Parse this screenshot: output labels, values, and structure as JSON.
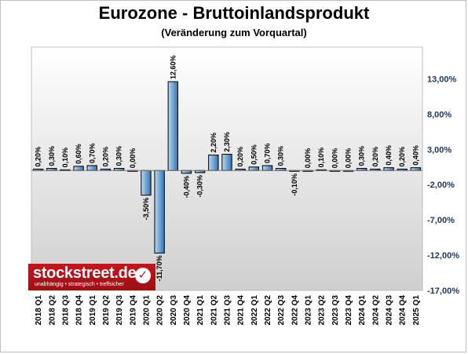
{
  "chart_data": {
    "type": "bar",
    "title": "Eurozone - Bruttoinlandsprodukt",
    "subtitle": "(Veränderung zum Vorquartal)",
    "categories": [
      "2018 Q1",
      "2018 Q2",
      "2018 Q3",
      "2018 Q4",
      "2019 Q1",
      "2019 Q2",
      "2019 Q3",
      "2019 Q4",
      "2020 Q1",
      "2020 Q2",
      "2020 Q3",
      "2020 Q4",
      "2021 Q1",
      "2021 Q2",
      "2021 Q3",
      "2021 Q4",
      "2022 Q1",
      "2022 Q2",
      "2022 Q3",
      "2022 Q4",
      "2023 Q1",
      "2023 Q2",
      "2023 Q3",
      "2023 Q4",
      "2024 Q1",
      "2024 Q2",
      "2024 Q3",
      "2024 Q4",
      "2025 Q1"
    ],
    "values": [
      0.2,
      0.3,
      0.1,
      0.6,
      0.7,
      0.2,
      0.3,
      0.0,
      -3.5,
      -11.7,
      12.6,
      -0.4,
      -0.3,
      2.2,
      2.3,
      0.2,
      0.5,
      0.7,
      0.3,
      -0.1,
      0.0,
      0.1,
      0.0,
      0.0,
      0.3,
      0.2,
      0.4,
      0.2,
      0.4
    ],
    "value_labels": [
      "0,20%",
      "0,30%",
      "0,10%",
      "0,60%",
      "0,70%",
      "0,20%",
      "0,30%",
      "0,00%",
      "-3,50%",
      "-11,70%",
      "12,60%",
      "-0,40%",
      "-0,30%",
      "2,20%",
      "2,30%",
      "0,20%",
      "0,50%",
      "0,70%",
      "0,30%",
      "-0,10%",
      "0,00%",
      "0,10%",
      "0,00%",
      "0,00%",
      "0,30%",
      "0,20%",
      "0,40%",
      "0,20%",
      "0,40%"
    ],
    "yticks": [
      13,
      8,
      3,
      -2,
      -7,
      -12,
      -17
    ],
    "ytick_labels": [
      "13,00%",
      "8,00%",
      "3,00%",
      "-2,00%",
      "-7,00%",
      "-12,00%",
      "-17,00%"
    ],
    "ylim": [
      -17,
      17.5
    ],
    "y_axis_side": "right",
    "grid": false,
    "colors": {
      "bar": "#2e75b6",
      "bar_light": "#bdd7ee",
      "axis_text": "#1f3864"
    }
  },
  "branding": {
    "name": "stockstreet.de",
    "tagline": "unabhängig • strategisch • treffsicher"
  }
}
